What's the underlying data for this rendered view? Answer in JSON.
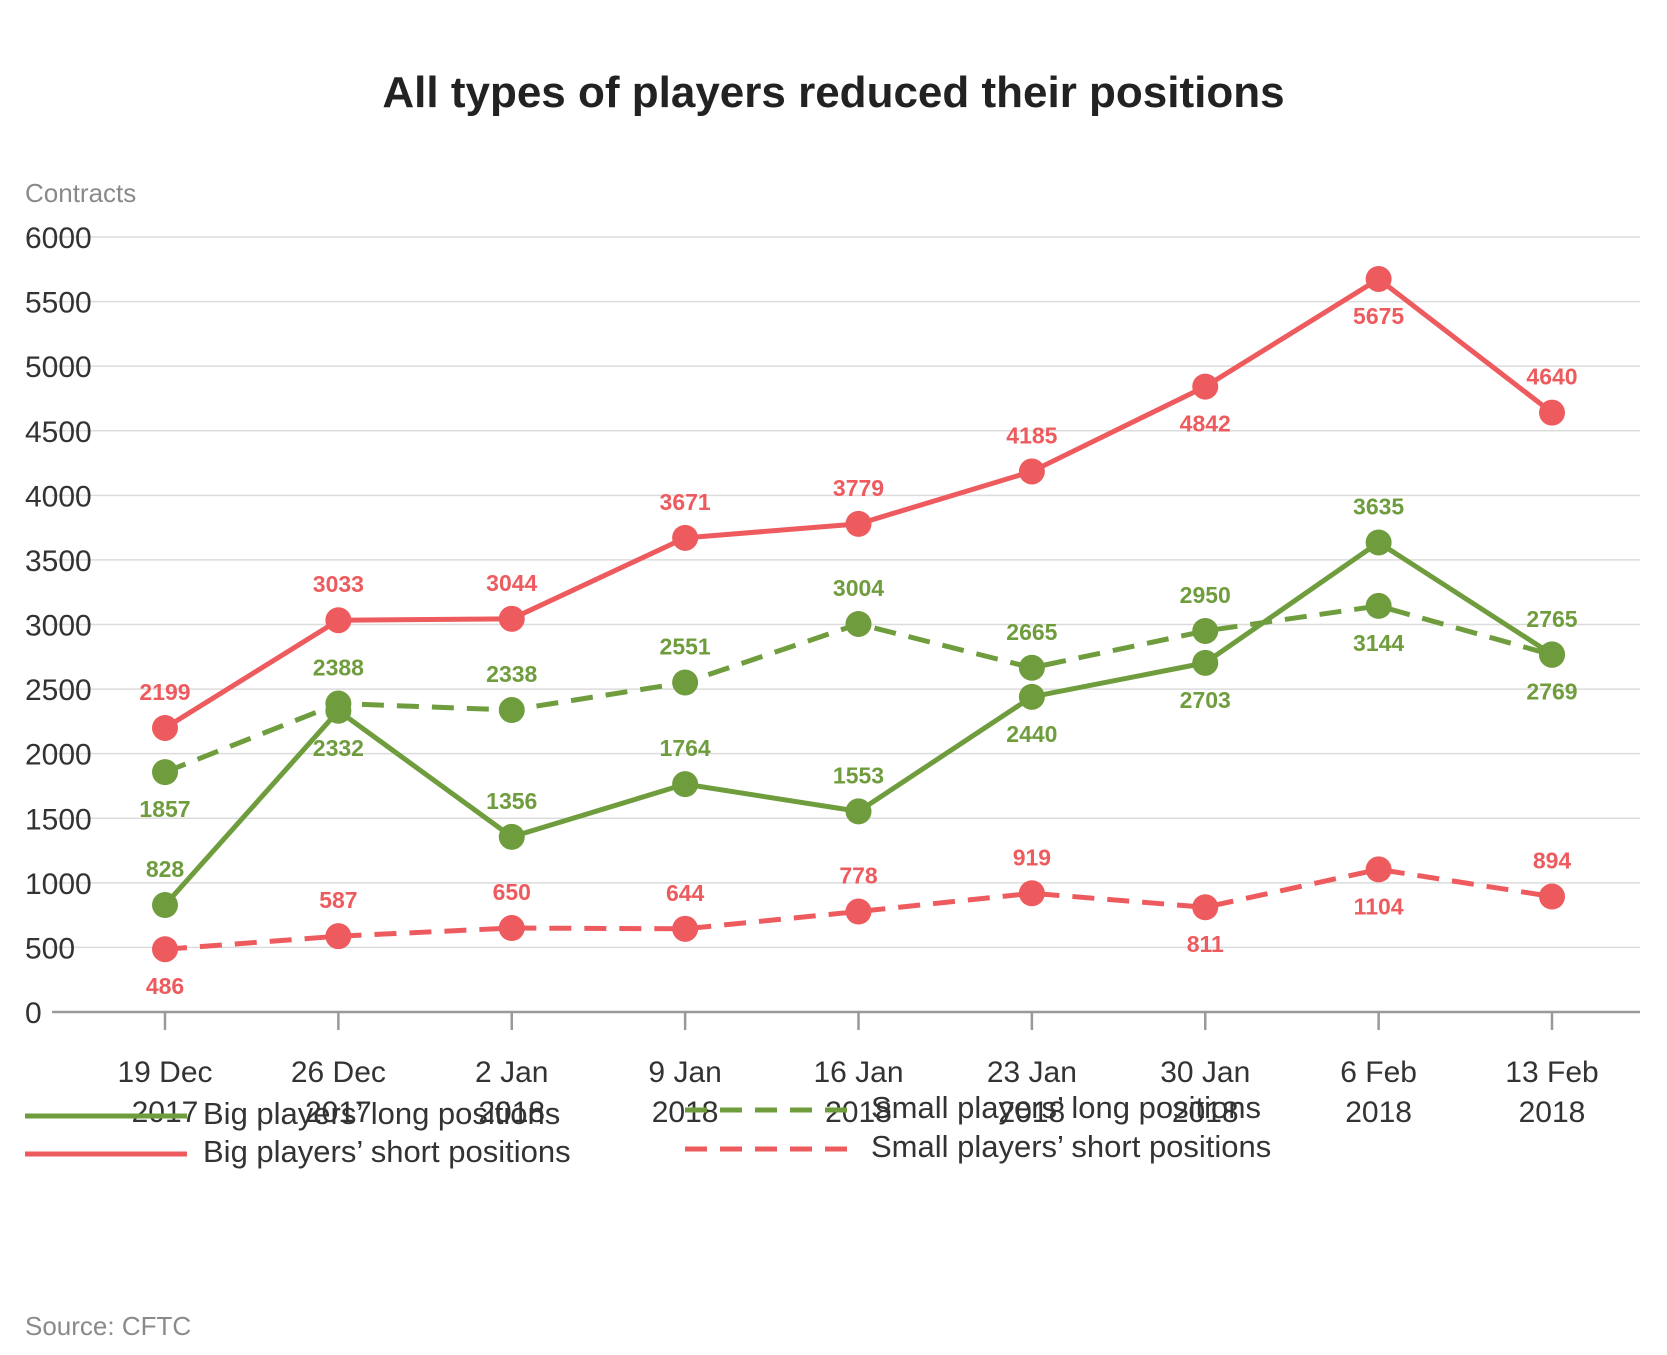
{
  "title": "All types of players reduced their positions",
  "source": "Source: CFTC",
  "colors": {
    "green": "#6f9d3e",
    "red": "#ee5b5e",
    "grid": "#dcdcdc",
    "axis": "#999999"
  },
  "chart_data": {
    "type": "line",
    "ylabel": "Contracts",
    "ylim": [
      0,
      6000
    ],
    "yticks": [
      0,
      500,
      1000,
      1500,
      2000,
      2500,
      3000,
      3500,
      4000,
      4500,
      5000,
      5500,
      6000
    ],
    "grid": true,
    "legend_position": "bottom",
    "categories": [
      [
        "19 Dec",
        "2017"
      ],
      [
        "26 Dec",
        "2017"
      ],
      [
        "2 Jan",
        "2018"
      ],
      [
        "9 Jan",
        "2018"
      ],
      [
        "16 Jan",
        "2018"
      ],
      [
        "23 Jan",
        "2018"
      ],
      [
        "30 Jan",
        "2018"
      ],
      [
        "6 Feb",
        "2018"
      ],
      [
        "13 Feb",
        "2018"
      ]
    ],
    "series": [
      {
        "name": "Big players’ long positions",
        "color": "#6f9d3e",
        "dashed": false,
        "values": [
          828,
          2332,
          1356,
          1764,
          1553,
          2440,
          2703,
          3635,
          2769
        ]
      },
      {
        "name": "Big players’ short positions",
        "color": "#ee5b5e",
        "dashed": false,
        "values": [
          2199,
          3033,
          3044,
          3671,
          3779,
          4185,
          4842,
          5675,
          4640
        ]
      },
      {
        "name": "Small players’ long positions",
        "color": "#6f9d3e",
        "dashed": true,
        "values": [
          1857,
          2388,
          2338,
          2551,
          3004,
          2665,
          2950,
          3144,
          2765
        ]
      },
      {
        "name": "Small players’ short positions",
        "color": "#ee5b5e",
        "dashed": true,
        "values": [
          486,
          587,
          650,
          644,
          778,
          919,
          811,
          1104,
          894
        ]
      }
    ]
  }
}
